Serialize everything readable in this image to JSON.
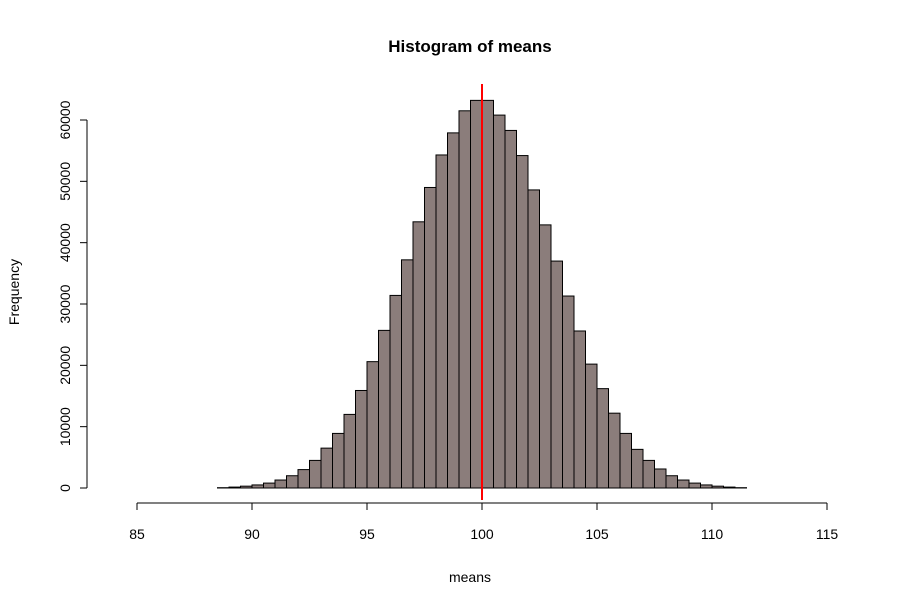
{
  "chart_data": {
    "type": "bar",
    "title": "Histogram of means",
    "xlabel": "means",
    "ylabel": "Frequency",
    "xlim": [
      85,
      115
    ],
    "ylim": [
      0,
      65000
    ],
    "x_ticks": [
      "85",
      "90",
      "95",
      "100",
      "105",
      "110",
      "115"
    ],
    "y_ticks": [
      "0",
      "10000",
      "20000",
      "30000",
      "40000",
      "50000",
      "60000"
    ],
    "bin_width": 0.5,
    "bin_start": 84,
    "values": [
      0,
      0,
      0,
      0,
      0,
      0,
      0,
      0,
      0,
      50,
      150,
      300,
      500,
      800,
      1300,
      2000,
      3000,
      4500,
      6500,
      8900,
      12000,
      15900,
      20600,
      25700,
      31400,
      37200,
      43400,
      49000,
      54300,
      57900,
      61500,
      63200,
      63200,
      60800,
      58300,
      54200,
      48600,
      42900,
      37000,
      31300,
      25600,
      20200,
      16200,
      12200,
      8900,
      6300,
      4500,
      3100,
      2000,
      1300,
      800,
      500,
      300,
      150,
      50,
      0,
      0,
      0,
      0,
      0,
      0,
      0,
      0,
      0,
      0,
      0,
      0,
      0,
      0,
      0,
      0
    ],
    "reference_line": {
      "x": 100,
      "color": "#ff0000"
    },
    "colors": {
      "bar_fill": "#8b7d7b",
      "bar_stroke": "#000000"
    }
  }
}
